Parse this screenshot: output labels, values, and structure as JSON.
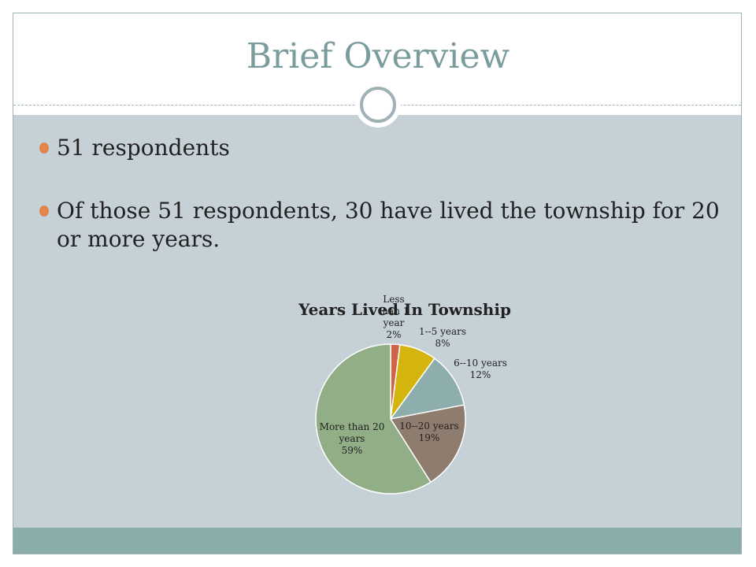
{
  "slide": {
    "title": "Brief Overview",
    "bullets": [
      "51 respondents",
      "Of those 51 respondents, 30 have lived the township for 20 or more years."
    ]
  },
  "colors": {
    "title": "#7a9c9c",
    "content_bg": "#c6d0d7",
    "footer_bg": "#8aadac",
    "bullet_dot": "#e0864a"
  },
  "chart_data": {
    "type": "pie",
    "title": "Years Lived In Township",
    "slices": [
      {
        "label_lines": [
          "Less",
          "than 1",
          "year",
          "2%"
        ],
        "value": 2,
        "color": "#d0634a"
      },
      {
        "label_lines": [
          "1--5 years",
          "8%"
        ],
        "value": 8,
        "color": "#d4b50e"
      },
      {
        "label_lines": [
          "6--10 years",
          "12%"
        ],
        "value": 12,
        "color": "#8eadad"
      },
      {
        "label_lines": [
          "10--20 years",
          "19%"
        ],
        "value": 19,
        "color": "#8e7c6e"
      },
      {
        "label_lines": [
          "More than 20",
          "years",
          "59%"
        ],
        "value": 59,
        "color": "#91ae86"
      }
    ]
  }
}
